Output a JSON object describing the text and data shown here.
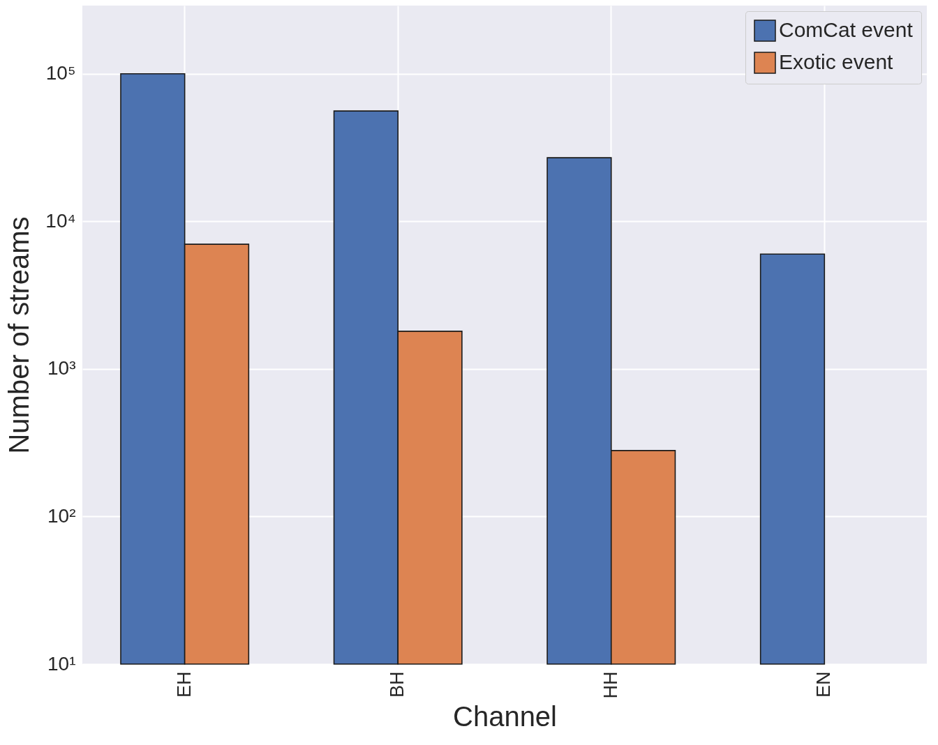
{
  "chart_data": {
    "type": "bar",
    "xlabel": "Channel",
    "ylabel": "Number of streams",
    "categories": [
      "EH",
      "BH",
      "HH",
      "EN"
    ],
    "series": [
      {
        "name": "ComCat event",
        "color": "#4c72b0",
        "values": [
          100000,
          56000,
          27000,
          6000
        ]
      },
      {
        "name": "Exotic event",
        "color": "#dd8452",
        "values": [
          7000,
          1800,
          280,
          null
        ]
      }
    ],
    "log": true,
    "ylim": [
      10,
      290000
    ],
    "yticks": [
      {
        "value": 10,
        "label": "10¹"
      },
      {
        "value": 100,
        "label": "10²"
      },
      {
        "value": 1000,
        "label": "10³"
      },
      {
        "value": 10000,
        "label": "10⁴"
      },
      {
        "value": 100000,
        "label": "10⁵"
      }
    ],
    "grid": true,
    "legend": "top right"
  }
}
